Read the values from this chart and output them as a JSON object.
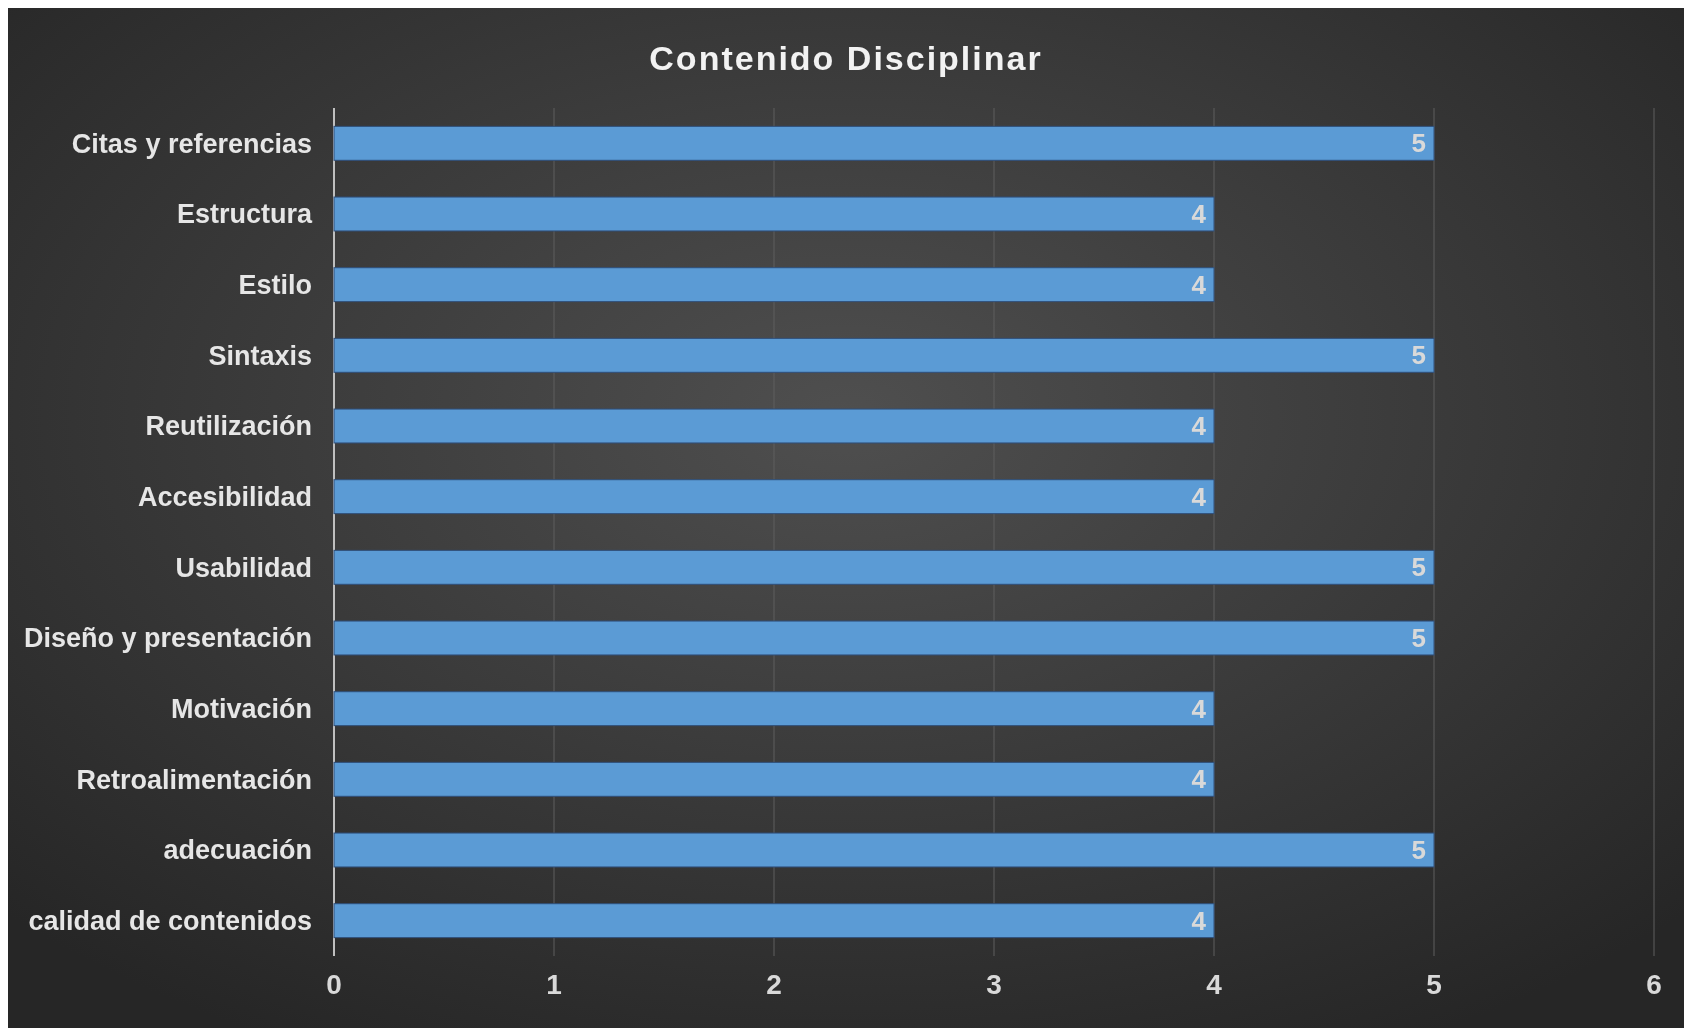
{
  "chart_data": {
    "type": "bar",
    "orientation": "horizontal",
    "title": "Contenido Disciplinar",
    "categories": [
      "Citas y referencias",
      "Estructura",
      "Estilo",
      "Sintaxis",
      "Reutilización",
      "Accesibilidad",
      "Usabilidad",
      "Diseño y presentación",
      "Motivación",
      "Retroalimentación",
      "adecuación",
      "calidad de contenidos"
    ],
    "values": [
      5,
      4,
      4,
      5,
      4,
      4,
      5,
      5,
      4,
      4,
      5,
      4
    ],
    "color": "#5b9bd5",
    "xlim": [
      0,
      6
    ],
    "xticks": [
      0,
      1,
      2,
      3,
      4,
      5,
      6
    ],
    "grid": "x",
    "data_labels": true
  }
}
